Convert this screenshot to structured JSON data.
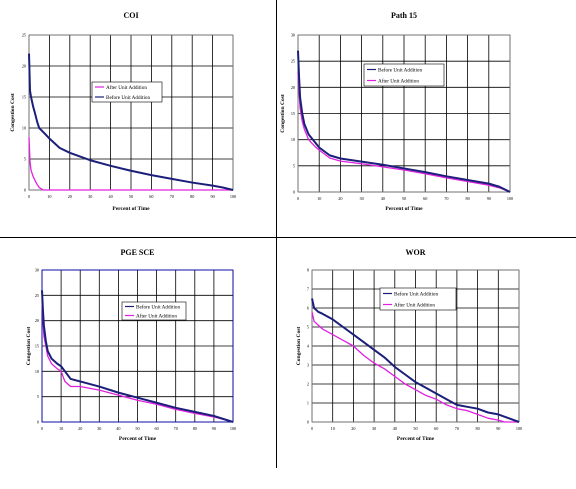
{
  "colors": {
    "before": "#1b1f7a",
    "after": "#e020e0",
    "grid": "#000000",
    "axis": "#7f7f7f"
  },
  "chart_data": [
    {
      "id": "coi",
      "type": "line",
      "title": "COI",
      "xlabel": "Percent of Time",
      "ylabel": "Congestion Cost",
      "xlim": [
        0,
        100
      ],
      "ylim": [
        0,
        25
      ],
      "x_ticks": [
        "0",
        "10",
        "20",
        "30",
        "40",
        "50",
        "60",
        "70",
        "80",
        "90",
        "100"
      ],
      "y_ticks": [
        "0",
        "5",
        "10",
        "15",
        "20",
        "25"
      ],
      "legend_position": "center",
      "legend_order": [
        "after",
        "before"
      ],
      "series": [
        {
          "key": "after",
          "name": "After Unit Addition",
          "points": [
            [
              0,
              8.5
            ],
            [
              0.5,
              4.5
            ],
            [
              1,
              3.2
            ],
            [
              2,
              2.2
            ],
            [
              3,
              1.5
            ],
            [
              4,
              0.9
            ],
            [
              5,
              0.4
            ],
            [
              6,
              0.2
            ],
            [
              7,
              0
            ],
            [
              100,
              0
            ]
          ]
        },
        {
          "key": "before",
          "name": "Before Unit Addition",
          "points": [
            [
              0,
              22
            ],
            [
              0.5,
              16
            ],
            [
              1,
              15
            ],
            [
              2,
              13.5
            ],
            [
              3,
              12.3
            ],
            [
              4,
              11
            ],
            [
              5,
              10
            ],
            [
              8,
              9
            ],
            [
              10,
              8.3
            ],
            [
              15,
              6.8
            ],
            [
              20,
              6
            ],
            [
              30,
              4.8
            ],
            [
              40,
              3.9
            ],
            [
              50,
              3.1
            ],
            [
              60,
              2.4
            ],
            [
              70,
              1.8
            ],
            [
              80,
              1.2
            ],
            [
              90,
              0.7
            ],
            [
              95,
              0.4
            ],
            [
              100,
              0
            ]
          ]
        }
      ]
    },
    {
      "id": "path15",
      "type": "line",
      "title": "Path 15",
      "xlabel": "Percent of Time",
      "ylabel": "Congestion Cost",
      "xlim": [
        0,
        100
      ],
      "ylim": [
        0,
        30
      ],
      "x_ticks": [
        "0",
        "10",
        "20",
        "30",
        "40",
        "50",
        "60",
        "70",
        "80",
        "90",
        "100"
      ],
      "y_ticks": [
        "0",
        "5",
        "10",
        "15",
        "20",
        "25",
        "30"
      ],
      "legend_position": "top-center",
      "legend_order": [
        "before",
        "after"
      ],
      "series": [
        {
          "key": "before",
          "name": "Before Unit Addition",
          "points": [
            [
              0,
              27
            ],
            [
              0.5,
              22
            ],
            [
              1,
              18
            ],
            [
              2,
              15
            ],
            [
              3,
              13
            ],
            [
              5,
              11
            ],
            [
              8,
              9.5
            ],
            [
              10,
              8.5
            ],
            [
              15,
              7
            ],
            [
              20,
              6.4
            ],
            [
              30,
              5.8
            ],
            [
              40,
              5.2
            ],
            [
              50,
              4.5
            ],
            [
              60,
              3.8
            ],
            [
              70,
              3.0
            ],
            [
              80,
              2.3
            ],
            [
              90,
              1.6
            ],
            [
              95,
              1.0
            ],
            [
              100,
              0
            ]
          ]
        },
        {
          "key": "after",
          "name": "After Unit Addition",
          "points": [
            [
              0,
              23
            ],
            [
              0.5,
              19
            ],
            [
              1,
              16
            ],
            [
              2,
              13.5
            ],
            [
              3,
              12
            ],
            [
              5,
              10
            ],
            [
              8,
              8.7
            ],
            [
              10,
              8
            ],
            [
              15,
              6.5
            ],
            [
              20,
              5.9
            ],
            [
              30,
              5.4
            ],
            [
              40,
              4.8
            ],
            [
              50,
              4.2
            ],
            [
              60,
              3.5
            ],
            [
              70,
              2.7
            ],
            [
              80,
              2.0
            ],
            [
              90,
              1.3
            ],
            [
              95,
              0.8
            ],
            [
              100,
              0
            ]
          ]
        }
      ]
    },
    {
      "id": "pgesce",
      "type": "line",
      "title": "PGE SCE",
      "xlabel": "Percent of Time",
      "ylabel": "Congestion Cost",
      "xlim": [
        0,
        100
      ],
      "ylim": [
        0,
        30
      ],
      "x_ticks": [
        "0",
        "10",
        "20",
        "30",
        "40",
        "50",
        "60",
        "70",
        "80",
        "90",
        "100"
      ],
      "y_ticks": [
        "0",
        "5",
        "10",
        "15",
        "20",
        "25",
        "30"
      ],
      "legend_position": "right",
      "legend_order": [
        "before",
        "after"
      ],
      "series": [
        {
          "key": "before",
          "name": "Before Unit Addition",
          "points": [
            [
              0,
              26
            ],
            [
              0.5,
              22
            ],
            [
              1,
              19
            ],
            [
              2,
              16
            ],
            [
              3,
              14
            ],
            [
              5,
              12.5
            ],
            [
              8,
              11.5
            ],
            [
              10,
              11
            ],
            [
              12,
              10
            ],
            [
              15,
              8.5
            ],
            [
              20,
              8
            ],
            [
              30,
              7
            ],
            [
              40,
              5.8
            ],
            [
              50,
              4.8
            ],
            [
              60,
              3.8
            ],
            [
              70,
              2.8
            ],
            [
              80,
              2.0
            ],
            [
              90,
              1.2
            ],
            [
              100,
              0
            ]
          ]
        },
        {
          "key": "after",
          "name": "After Unit Addition",
          "points": [
            [
              0,
              24
            ],
            [
              0.5,
              20
            ],
            [
              1,
              17
            ],
            [
              2,
              15
            ],
            [
              3,
              13
            ],
            [
              5,
              11.5
            ],
            [
              8,
              10.5
            ],
            [
              10,
              10
            ],
            [
              12,
              8
            ],
            [
              15,
              7
            ],
            [
              20,
              7
            ],
            [
              30,
              6.3
            ],
            [
              40,
              5.3
            ],
            [
              50,
              4.3
            ],
            [
              60,
              3.5
            ],
            [
              70,
              2.5
            ],
            [
              80,
              1.7
            ],
            [
              90,
              1.0
            ],
            [
              100,
              0
            ]
          ]
        }
      ]
    },
    {
      "id": "wor",
      "type": "line",
      "title": "WOR",
      "xlabel": "Percent of Time",
      "ylabel": "Congestion Cost",
      "xlim": [
        0,
        100
      ],
      "ylim": [
        0,
        8
      ],
      "x_ticks": [
        "0",
        "10",
        "20",
        "30",
        "40",
        "50",
        "60",
        "70",
        "80",
        "90",
        "100"
      ],
      "y_ticks": [
        "0",
        "1",
        "2",
        "3",
        "4",
        "5",
        "6",
        "7",
        "8"
      ],
      "legend_position": "top-right",
      "legend_order": [
        "before",
        "after"
      ],
      "series": [
        {
          "key": "before",
          "name": "Before Unit Addition",
          "points": [
            [
              0,
              6.5
            ],
            [
              1,
              6.0
            ],
            [
              3,
              5.8
            ],
            [
              5,
              5.7
            ],
            [
              10,
              5.4
            ],
            [
              15,
              5.0
            ],
            [
              20,
              4.6
            ],
            [
              25,
              4.2
            ],
            [
              30,
              3.8
            ],
            [
              35,
              3.4
            ],
            [
              40,
              2.9
            ],
            [
              45,
              2.5
            ],
            [
              50,
              2.1
            ],
            [
              55,
              1.8
            ],
            [
              60,
              1.5
            ],
            [
              65,
              1.2
            ],
            [
              70,
              0.9
            ],
            [
              75,
              0.8
            ],
            [
              80,
              0.7
            ],
            [
              85,
              0.5
            ],
            [
              90,
              0.4
            ],
            [
              95,
              0.2
            ],
            [
              100,
              0
            ]
          ]
        },
        {
          "key": "after",
          "name": "After Unit Addition",
          "points": [
            [
              0,
              5.8
            ],
            [
              1,
              5.3
            ],
            [
              3,
              5.1
            ],
            [
              5,
              4.9
            ],
            [
              10,
              4.6
            ],
            [
              15,
              4.3
            ],
            [
              20,
              4.0
            ],
            [
              25,
              3.5
            ],
            [
              30,
              3.1
            ],
            [
              35,
              2.8
            ],
            [
              40,
              2.4
            ],
            [
              45,
              2.0
            ],
            [
              50,
              1.7
            ],
            [
              55,
              1.4
            ],
            [
              60,
              1.2
            ],
            [
              65,
              0.9
            ],
            [
              70,
              0.7
            ],
            [
              75,
              0.6
            ],
            [
              80,
              0.4
            ],
            [
              85,
              0.2
            ],
            [
              90,
              0.1
            ],
            [
              93,
              0
            ],
            [
              100,
              0
            ]
          ]
        }
      ]
    }
  ]
}
